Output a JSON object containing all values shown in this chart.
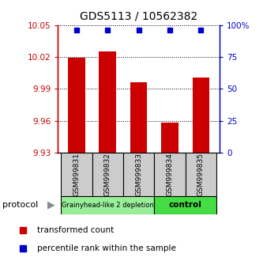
{
  "title": "GDS5113 / 10562382",
  "samples": [
    "GSM999831",
    "GSM999832",
    "GSM999833",
    "GSM999834",
    "GSM999835"
  ],
  "bar_values": [
    10.019,
    10.025,
    9.996,
    9.958,
    10.001
  ],
  "percentile_values": [
    96,
    96,
    96,
    96,
    96
  ],
  "ylim_left": [
    9.93,
    10.05
  ],
  "ylim_right": [
    0,
    100
  ],
  "yticks_left": [
    9.93,
    9.96,
    9.99,
    10.02,
    10.05
  ],
  "ytick_labels_left": [
    "9.93",
    "9.96",
    "9.99",
    "10.02",
    "10.05"
  ],
  "yticks_right": [
    0,
    25,
    50,
    75,
    100
  ],
  "ytick_labels_right": [
    "0",
    "25",
    "50",
    "75",
    "100%"
  ],
  "bar_color": "#cc0000",
  "percentile_color": "#0000cc",
  "group1_label": "Grainyhead-like 2 depletion",
  "group1_samples": [
    0,
    1,
    2
  ],
  "group1_color": "#99ee99",
  "group2_label": "control",
  "group2_samples": [
    3,
    4
  ],
  "group2_color": "#44dd44",
  "protocol_label": "protocol",
  "legend_bar_label": "transformed count",
  "legend_pct_label": "percentile rank within the sample",
  "bar_width": 0.55,
  "title_fontsize": 10
}
